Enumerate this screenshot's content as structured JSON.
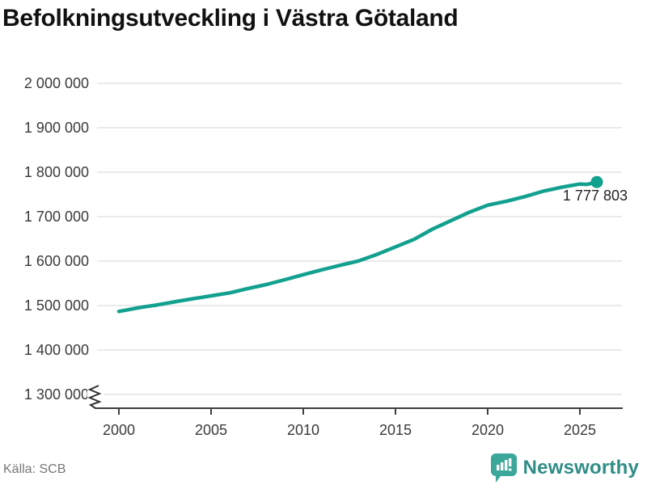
{
  "title": "Befolkningsutveckling i Västra Götaland",
  "source": "Källa: SCB",
  "branding": {
    "name": "Newsworthy",
    "text_color": "#2f8d86",
    "mark_color": "#3ba79a"
  },
  "colors": {
    "background": "#ffffff",
    "line": "#12a08f",
    "marker": "#12a08f",
    "grid": "#e3e3e3",
    "axis": "#3f3f3f",
    "tick_label": "#3a3a3a",
    "title": "#111111",
    "annotation": "#222222",
    "source_text": "#767676"
  },
  "chart_data": {
    "type": "line",
    "title": "Befolkningsutveckling i Västra Götaland",
    "xlabel": "",
    "ylabel": "",
    "grid": "horizontal",
    "legend": "none",
    "axis_break_bottom": true,
    "ylim": [
      1300000,
      2000000
    ],
    "xlim": [
      1998.7,
      2027.3
    ],
    "x_ticks": [
      2000,
      2005,
      2010,
      2015,
      2020,
      2025
    ],
    "x_tick_labels": [
      "2000",
      "2005",
      "2010",
      "2015",
      "2020",
      "2025"
    ],
    "y_ticks": [
      1300000,
      1400000,
      1500000,
      1600000,
      1700000,
      1800000,
      1900000,
      2000000
    ],
    "y_tick_labels": [
      "1 300 000",
      "1 400 000",
      "1 500 000",
      "1 600 000",
      "1 700 000",
      "1 800 000",
      "1 900 000",
      "2 000 000"
    ],
    "series_name": "Befolkning",
    "x": [
      2000,
      2000.5,
      2001,
      2001.5,
      2002,
      2002.5,
      2003,
      2003.5,
      2004,
      2004.5,
      2005,
      2005.5,
      2006,
      2006.5,
      2007,
      2007.5,
      2008,
      2008.5,
      2009,
      2009.5,
      2010,
      2010.5,
      2011,
      2011.5,
      2012,
      2012.5,
      2013,
      2013.5,
      2014,
      2014.5,
      2015,
      2015.5,
      2016,
      2016.5,
      2017,
      2017.5,
      2018,
      2018.5,
      2019,
      2019.5,
      2020,
      2020.5,
      2021,
      2021.5,
      2022,
      2022.5,
      2023,
      2023.5,
      2024,
      2024.5,
      2025,
      2025.4,
      2025.92
    ],
    "values": [
      1486800,
      1490500,
      1494600,
      1497800,
      1500900,
      1504500,
      1508200,
      1511800,
      1515300,
      1518600,
      1521900,
      1525200,
      1528500,
      1533300,
      1538300,
      1542800,
      1547300,
      1552700,
      1558100,
      1563800,
      1569500,
      1574900,
      1580300,
      1585400,
      1590600,
      1595500,
      1600400,
      1607700,
      1615100,
      1623500,
      1632000,
      1640300,
      1648700,
      1660200,
      1671800,
      1681300,
      1690800,
      1700300,
      1709800,
      1717800,
      1725900,
      1730100,
      1734400,
      1739600,
      1744900,
      1751000,
      1757100,
      1761500,
      1766000,
      1769800,
      1773300,
      1772600,
      1777803
    ],
    "end_value": 1777803,
    "end_label": "1 777 803"
  }
}
